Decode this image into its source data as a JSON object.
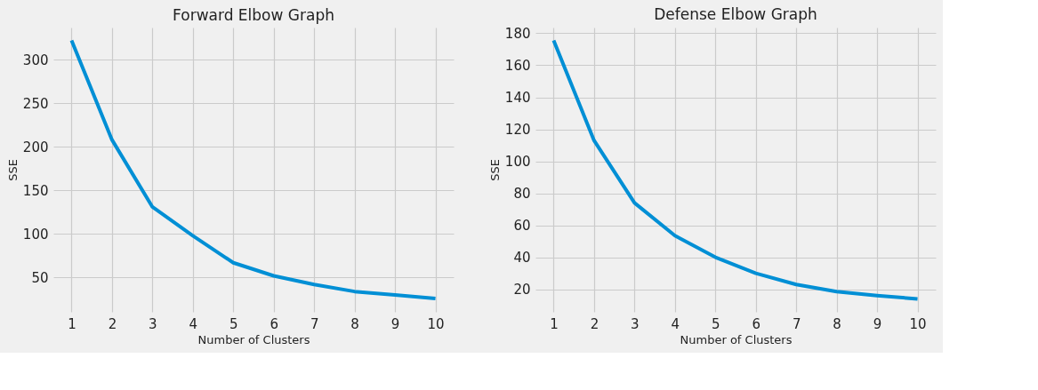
{
  "chart_data": [
    {
      "type": "line",
      "title": "Forward Elbow Graph",
      "xlabel": "Number of Clusters",
      "ylabel": "SSE",
      "x": [
        1,
        2,
        3,
        4,
        5,
        6,
        7,
        8,
        9,
        10
      ],
      "series": [
        {
          "color": "#008fd5",
          "values": [
            322,
            208,
            131,
            98,
            67,
            52,
            42,
            34,
            30,
            26
          ]
        }
      ],
      "xlim": [
        0.55,
        10.45
      ],
      "xticks": [
        1,
        2,
        3,
        4,
        5,
        6,
        7,
        8,
        9,
        10
      ],
      "ylim": [
        10.7,
        336.8
      ],
      "yticks": [
        50,
        100,
        150,
        200,
        250,
        300
      ],
      "grid": true
    },
    {
      "type": "line",
      "title": "Defense Elbow Graph",
      "xlabel": "Number of Clusters",
      "ylabel": "SSE",
      "x": [
        1,
        2,
        3,
        4,
        5,
        6,
        7,
        8,
        9,
        10
      ],
      "series": [
        {
          "color": "#008fd5",
          "values": [
            175.5,
            113,
            74,
            53.5,
            40,
            30,
            23,
            18.5,
            16,
            14
          ]
        }
      ],
      "xlim": [
        0.55,
        10.45
      ],
      "xticks": [
        1,
        2,
        3,
        4,
        5,
        6,
        7,
        8,
        9,
        10
      ],
      "ylim": [
        5.9,
        183.6
      ],
      "yticks": [
        20,
        40,
        60,
        80,
        100,
        120,
        140,
        160,
        180
      ],
      "grid": true
    }
  ]
}
